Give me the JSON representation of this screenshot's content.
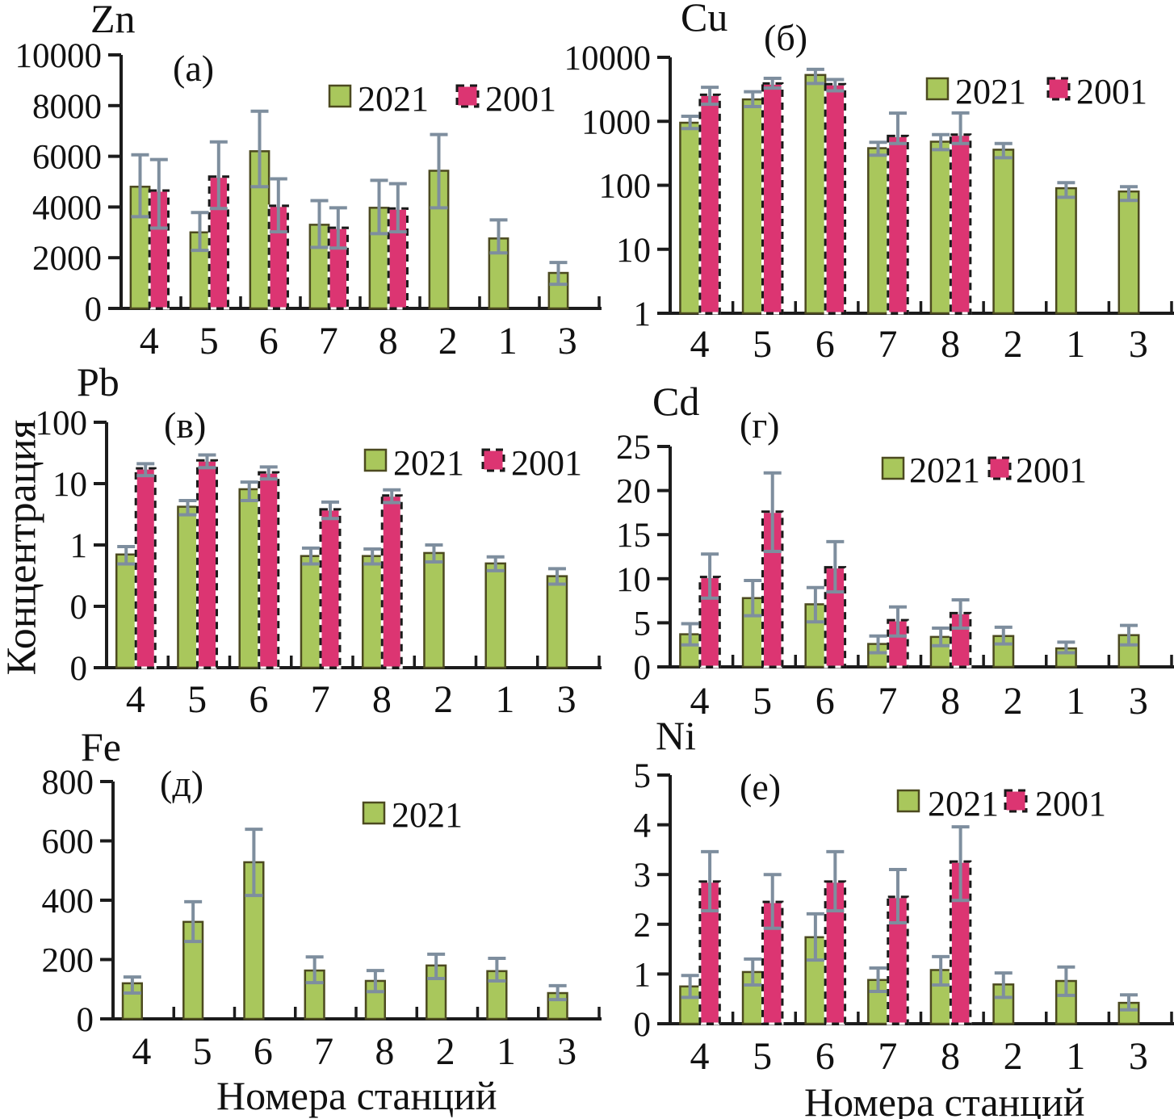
{
  "figure": {
    "y_axis_label": "Концентрация",
    "x_axis_label": "Номера станций"
  },
  "colors": {
    "green_fill": "#a9c75c",
    "green_border": "#4c4a20",
    "pink_fill": "#dc3572",
    "pink_border": "#1a1a1a",
    "error_bar": "#7e8e9e",
    "axis": "#1c1c1c",
    "text": "#111111"
  },
  "chart_data": [
    {
      "type": "bar",
      "id": "zn",
      "title": "Zn",
      "panel_label": "(а)",
      "scale": "linear",
      "ylim": [
        0,
        10000
      ],
      "yticks": [
        {
          "value": 0,
          "label": "0"
        },
        {
          "value": 2000,
          "label": "2000"
        },
        {
          "value": 4000,
          "label": "4000"
        },
        {
          "value": 6000,
          "label": "6000"
        },
        {
          "value": 8000,
          "label": "8000"
        },
        {
          "value": 10000,
          "label": "10000"
        }
      ],
      "categories": [
        "4",
        "5",
        "6",
        "7",
        "8",
        "2",
        "1",
        "3"
      ],
      "legend": [
        "2021",
        "2001"
      ],
      "series": [
        {
          "name": "2021",
          "color": "green",
          "values": [
            4800,
            3000,
            6200,
            3300,
            3970,
            5430,
            2760,
            1400
          ],
          "err_low": [
            3620,
            2290,
            4800,
            2410,
            2950,
            3970,
            2190,
            950
          ],
          "err_high": [
            6060,
            3780,
            7780,
            4250,
            5050,
            6860,
            3490,
            1810
          ]
        },
        {
          "name": "2001",
          "color": "pink",
          "values": [
            4650,
            5200,
            4050,
            3180,
            3940,
            null,
            null,
            null
          ],
          "err_low": [
            3170,
            3940,
            3020,
            2380,
            3020,
            null,
            null,
            null
          ],
          "err_high": [
            5870,
            6570,
            5110,
            3970,
            4920,
            null,
            null,
            null
          ]
        }
      ]
    },
    {
      "type": "bar",
      "id": "cu",
      "title": "Cu",
      "panel_label": "(б)",
      "scale": "log",
      "ylim_exp": [
        0,
        4
      ],
      "yticks": [
        {
          "value": 1,
          "label": "1"
        },
        {
          "value": 10,
          "label": "10"
        },
        {
          "value": 100,
          "label": "100"
        },
        {
          "value": 1000,
          "label": "1000"
        },
        {
          "value": 10000,
          "label": "10000"
        }
      ],
      "categories": [
        "4",
        "5",
        "6",
        "7",
        "8",
        "2",
        "1",
        "3"
      ],
      "legend": [
        "2021",
        "2001"
      ],
      "series": [
        {
          "name": "2021",
          "color": "green",
          "values": [
            950,
            2200,
            5300,
            380,
            480,
            360,
            90,
            80
          ],
          "err_low": [
            770,
            1700,
            3900,
            295,
            360,
            270,
            65,
            58
          ],
          "err_high": [
            1200,
            2900,
            6500,
            470,
            620,
            450,
            110,
            95
          ]
        },
        {
          "name": "2001",
          "color": "pink",
          "values": [
            2600,
            3900,
            3800,
            590,
            620,
            null,
            null,
            null
          ],
          "err_low": [
            1850,
            3300,
            3000,
            450,
            450,
            null,
            null,
            null
          ],
          "err_high": [
            3400,
            4700,
            4500,
            1340,
            1350,
            null,
            null,
            null
          ]
        }
      ]
    },
    {
      "type": "bar",
      "id": "pb",
      "title": "Pb",
      "panel_label": "(в)",
      "scale": "log",
      "ylim_exp": [
        -2,
        2
      ],
      "yticks": [
        {
          "value": 0.01,
          "label": "0"
        },
        {
          "value": 0.1,
          "label": "0"
        },
        {
          "value": 1,
          "label": "1"
        },
        {
          "value": 10,
          "label": "10"
        },
        {
          "value": 100,
          "label": "100"
        }
      ],
      "categories": [
        "4",
        "5",
        "6",
        "7",
        "8",
        "2",
        "1",
        "3"
      ],
      "legend": [
        "2021",
        "2001"
      ],
      "series": [
        {
          "name": "2021",
          "color": "green",
          "values": [
            0.7,
            4.2,
            8.1,
            0.66,
            0.66,
            0.74,
            0.5,
            0.31
          ],
          "err_low": [
            0.49,
            3.1,
            5.3,
            0.49,
            0.49,
            0.53,
            0.38,
            0.23
          ],
          "err_high": [
            0.94,
            5.3,
            10.6,
            0.89,
            0.86,
            1.0,
            0.64,
            0.41
          ]
        },
        {
          "name": "2001",
          "color": "pink",
          "values": [
            17.7,
            23.9,
            15.2,
            3.8,
            6.4,
            null,
            null,
            null
          ],
          "err_low": [
            13.5,
            18.2,
            11.9,
            2.7,
            4.9,
            null,
            null,
            null
          ],
          "err_high": [
            21.1,
            29.3,
            18.7,
            5.0,
            7.9,
            null,
            null,
            null
          ]
        }
      ]
    },
    {
      "type": "bar",
      "id": "cd",
      "title": "Cd",
      "panel_label": "(г)",
      "scale": "linear",
      "ylim": [
        0,
        25
      ],
      "yticks": [
        {
          "value": 0,
          "label": "0"
        },
        {
          "value": 5,
          "label": "5"
        },
        {
          "value": 10,
          "label": "10"
        },
        {
          "value": 15,
          "label": "15"
        },
        {
          "value": 20,
          "label": "20"
        },
        {
          "value": 25,
          "label": "25"
        }
      ],
      "categories": [
        "4",
        "5",
        "6",
        "7",
        "8",
        "2",
        "1",
        "3"
      ],
      "legend": [
        "2021",
        "2001"
      ],
      "series": [
        {
          "name": "2021",
          "color": "green",
          "values": [
            3.7,
            7.8,
            7.1,
            2.6,
            3.4,
            3.5,
            2.1,
            3.6
          ],
          "err_low": [
            2.5,
            5.8,
            5.1,
            1.6,
            2.4,
            2.6,
            1.6,
            2.5
          ],
          "err_high": [
            4.9,
            9.8,
            9.0,
            3.5,
            4.4,
            4.5,
            2.8,
            4.7
          ]
        },
        {
          "name": "2001",
          "color": "pink",
          "values": [
            10.2,
            17.6,
            11.3,
            5.3,
            6.1,
            null,
            null,
            null
          ],
          "err_low": [
            7.8,
            13.1,
            8.5,
            3.5,
            4.4,
            null,
            null,
            null
          ],
          "err_high": [
            12.8,
            22.0,
            14.2,
            6.8,
            7.6,
            null,
            null,
            null
          ]
        }
      ]
    },
    {
      "type": "bar",
      "id": "fe",
      "title": "Fe",
      "panel_label": "(д)",
      "scale": "linear",
      "ylim": [
        0,
        800
      ],
      "yticks": [
        {
          "value": 0,
          "label": "0"
        },
        {
          "value": 200,
          "label": "200"
        },
        {
          "value": 400,
          "label": "400"
        },
        {
          "value": 600,
          "label": "600"
        },
        {
          "value": 800,
          "label": "800"
        }
      ],
      "categories": [
        "4",
        "5",
        "6",
        "7",
        "8",
        "2",
        "1",
        "3"
      ],
      "legend": [
        "2021"
      ],
      "xlabel": "Номера станций",
      "series": [
        {
          "name": "2021",
          "color": "green",
          "values": [
            120,
            327,
            528,
            163,
            128,
            180,
            161,
            87
          ],
          "err_low": [
            87,
            261,
            416,
            122,
            92,
            136,
            128,
            65
          ],
          "err_high": [
            141,
            395,
            639,
            209,
            163,
            218,
            204,
            112
          ]
        }
      ]
    },
    {
      "type": "bar",
      "id": "ni",
      "title": "Ni",
      "panel_label": "(е)",
      "scale": "linear",
      "ylim": [
        0,
        5
      ],
      "yticks": [
        {
          "value": 0,
          "label": "0"
        },
        {
          "value": 1,
          "label": "1"
        },
        {
          "value": 2,
          "label": "2"
        },
        {
          "value": 3,
          "label": "3"
        },
        {
          "value": 4,
          "label": "4"
        },
        {
          "value": 5,
          "label": "5"
        }
      ],
      "categories": [
        "4",
        "5",
        "6",
        "7",
        "8",
        "2",
        "1",
        "3"
      ],
      "legend": [
        "2021",
        "2001"
      ],
      "xlabel": "Номера станций",
      "series": [
        {
          "name": "2021",
          "color": "green",
          "values": [
            0.75,
            1.04,
            1.74,
            0.88,
            1.08,
            0.79,
            0.86,
            0.42
          ],
          "err_low": [
            0.53,
            0.78,
            1.28,
            0.65,
            0.78,
            0.53,
            0.57,
            0.28
          ],
          "err_high": [
            0.97,
            1.3,
            2.21,
            1.12,
            1.35,
            1.02,
            1.14,
            0.58
          ]
        },
        {
          "name": "2001",
          "color": "pink",
          "values": [
            2.86,
            2.45,
            2.86,
            2.55,
            3.26,
            null,
            null,
            null
          ],
          "err_low": [
            2.27,
            1.92,
            2.27,
            2.03,
            2.48,
            null,
            null,
            null
          ],
          "err_high": [
            3.46,
            3.0,
            3.46,
            3.1,
            3.96,
            null,
            null,
            null
          ]
        }
      ]
    }
  ]
}
